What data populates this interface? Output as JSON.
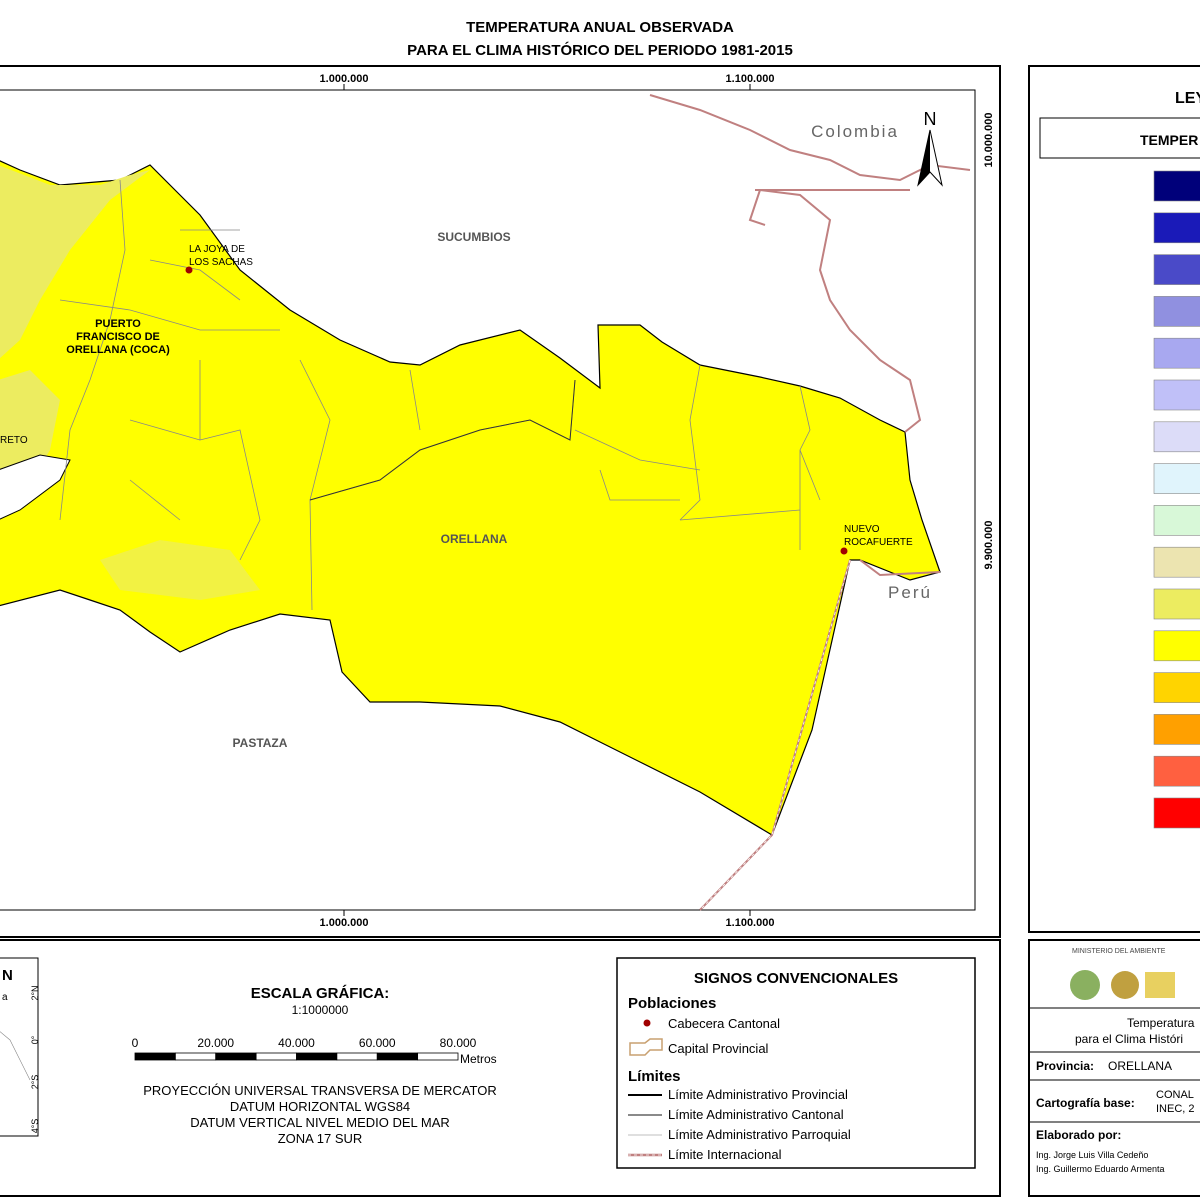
{
  "header": {
    "lines": [
      "TEMPERATURA ANUAL OBSERVADA",
      "PARA EL CLIMA HISTÓRICO DEL PERIODO 1981-2015"
    ]
  },
  "map": {
    "coords_top": [
      "1.000.000",
      "1.100.000"
    ],
    "coords_bottom": [
      "1.000.000",
      "1.100.000"
    ],
    "coords_right": [
      "10.000.000",
      "9.900.000"
    ],
    "north": "N",
    "countries": [
      "Colombia",
      "Perú"
    ],
    "provinces": [
      "SUCUMBIOS",
      "ORELLANA",
      "PASTAZA"
    ],
    "towns": [
      [
        "LA JOYA DE",
        "LOS SACHAS"
      ],
      [
        "PUERTO",
        "FRANCISCO DE",
        "ORELLANA (COCA)"
      ],
      [
        "NUEVO",
        "ROCAFUERTE"
      ],
      [
        "RETO"
      ]
    ]
  },
  "legend": {
    "title": "LEY",
    "subtitle": "TEMPER",
    "swatches": [
      "#00007a",
      "#1a1ab8",
      "#4a4ac8",
      "#9090e0",
      "#a8a8f0",
      "#c0c0f8",
      "#dcdcf8",
      "#e0f4fc",
      "#d8f8d8",
      "#ece4b0",
      "#ecec60",
      "#ffff00",
      "#ffd400",
      "#ffa000",
      "#ff6040",
      "#ff0000"
    ]
  },
  "inset": {
    "title": "N",
    "label": "a",
    "lat_labels": [
      "2°N",
      "0°",
      "2°S",
      "4°S"
    ]
  },
  "scale": {
    "title": "ESCALA GRÁFICA:",
    "ratio": "1:1000000",
    "ticks": [
      "0",
      "20.000",
      "40.000",
      "60.000",
      "80.000"
    ],
    "unit": "Metros",
    "projection": [
      "PROYECCIÓN UNIVERSAL TRANSVERSA DE MERCATOR",
      "DATUM HORIZONTAL WGS84",
      "DATUM VERTICAL NIVEL MEDIO DEL MAR",
      "ZONA 17 SUR"
    ]
  },
  "signs": {
    "title": "SIGNOS CONVENCIONALES",
    "towns_heading": "Poblaciones",
    "towns": [
      "Cabecera Cantonal",
      "Capital Provincial"
    ],
    "limits_heading": "Límites",
    "limits": [
      "Límite Administrativo Provincial",
      "Límite Administrativo Cantonal",
      "Límite Administrativo Parroquial",
      "Límite Internacional"
    ]
  },
  "credits": {
    "ministry": "MINISTERIO DEL AMBIENTE",
    "map_title": [
      "Temperatura",
      "para el Clima Históri"
    ],
    "province_label": "Provincia:",
    "province": "ORELLANA",
    "base_label": "Cartografía base:",
    "base": [
      "CONAL",
      "INEC, 2"
    ],
    "made_by": "Elaborado por:",
    "authors": [
      "Ing. Jorge Luis Villa Cedeño",
      "Ing. Guillermo Eduardo Armenta"
    ]
  }
}
